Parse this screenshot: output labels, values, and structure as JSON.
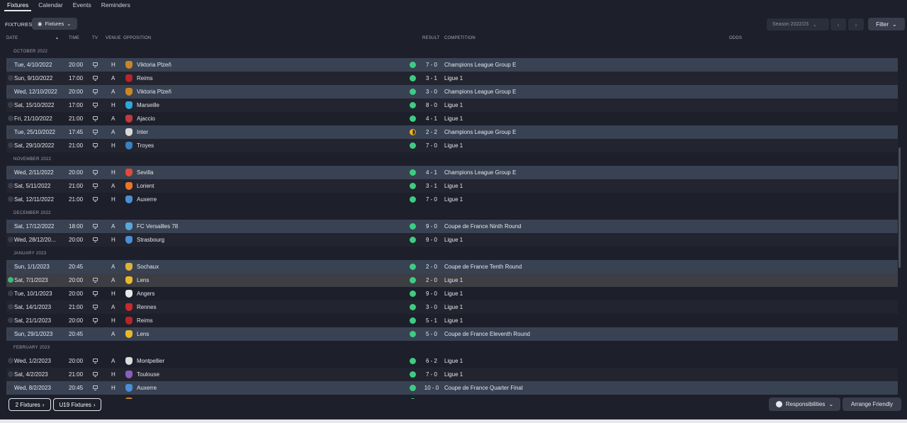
{
  "tabs": [
    {
      "label": "Fixtures",
      "active": true
    },
    {
      "label": "Calendar",
      "active": false
    },
    {
      "label": "Events",
      "active": false
    },
    {
      "label": "Reminders",
      "active": false
    }
  ],
  "toolbar": {
    "fixtures_label": "FIXTURES",
    "view_dropdown": "Fixtures",
    "season": "Season 2022/23",
    "filter": "Filter"
  },
  "columns": {
    "date": "DATE",
    "time": "TIME",
    "tv": "TV",
    "venue": "VENUE",
    "opposition": "OPPOSITION",
    "result": "RESULT",
    "competition": "COMPETITION",
    "odds": "ODDS"
  },
  "months": [
    {
      "label": "OCTOBER 2022",
      "rows": [
        {
          "date": "Tue, 4/10/2022",
          "time": "20:00",
          "tv": true,
          "venue": "H",
          "opposition": "Viktoria Plzeň",
          "crest": "#c8862a",
          "result": "win",
          "score": "7 - 0",
          "competition": "Champions League Group E",
          "style": "hl"
        },
        {
          "date": "Sun, 9/10/2022",
          "time": "17:00",
          "tv": true,
          "venue": "A",
          "opposition": "Reims",
          "crest": "#b8242b",
          "result": "win",
          "score": "3 - 1",
          "competition": "Ligue 1",
          "style": "odd"
        },
        {
          "date": "Wed, 12/10/2022",
          "time": "20:00",
          "tv": true,
          "venue": "A",
          "opposition": "Viktoria Plzeň",
          "crest": "#c8862a",
          "result": "win",
          "score": "3 - 0",
          "competition": "Champions League Group E",
          "style": "hl"
        },
        {
          "date": "Sat, 15/10/2022",
          "time": "17:00",
          "tv": true,
          "venue": "H",
          "opposition": "Marseille",
          "crest": "#2fa7db",
          "result": "win",
          "score": "8 - 0",
          "competition": "Ligue 1",
          "style": "odd"
        },
        {
          "date": "Fri, 21/10/2022",
          "time": "21:00",
          "tv": true,
          "venue": "A",
          "opposition": "Ajaccio",
          "crest": "#c23a3a",
          "result": "win",
          "score": "4 - 1",
          "competition": "Ligue 1",
          "style": ""
        },
        {
          "date": "Tue, 25/10/2022",
          "time": "17:45",
          "tv": true,
          "venue": "A",
          "opposition": "Inter",
          "crest": "#d9d9d9",
          "result": "draw",
          "score": "2 - 2",
          "competition": "Champions League Group E",
          "style": "hl"
        },
        {
          "date": "Sat, 29/10/2022",
          "time": "21:00",
          "tv": true,
          "venue": "H",
          "opposition": "Troyes",
          "crest": "#3a7fc1",
          "result": "win",
          "score": "7 - 0",
          "competition": "Ligue 1",
          "style": "odd"
        }
      ]
    },
    {
      "label": "NOVEMBER 2022",
      "rows": [
        {
          "date": "Wed, 2/11/2022",
          "time": "20:00",
          "tv": true,
          "venue": "H",
          "opposition": "Sevilla",
          "crest": "#e04b3c",
          "result": "win",
          "score": "4 - 1",
          "competition": "Champions League Group E",
          "style": "hl"
        },
        {
          "date": "Sat, 5/11/2022",
          "time": "21:00",
          "tv": true,
          "venue": "A",
          "opposition": "Lorient",
          "crest": "#e8772a",
          "result": "win",
          "score": "3 - 1",
          "competition": "Ligue 1",
          "style": "odd"
        },
        {
          "date": "Sat, 12/11/2022",
          "time": "21:00",
          "tv": true,
          "venue": "H",
          "opposition": "Auxerre",
          "crest": "#4a8fd6",
          "result": "win",
          "score": "7 - 0",
          "competition": "Ligue 1",
          "style": ""
        }
      ]
    },
    {
      "label": "DECEMBER 2022",
      "rows": [
        {
          "date": "Sat, 17/12/2022",
          "time": "18:00",
          "tv": true,
          "venue": "A",
          "opposition": "FC Versailles 78",
          "crest": "#5aa7dc",
          "result": "win",
          "score": "9 - 0",
          "competition": "Coupe de France Ninth Round",
          "style": "hl"
        },
        {
          "date": "Wed, 28/12/20...",
          "time": "20:00",
          "tv": true,
          "venue": "H",
          "opposition": "Strasbourg",
          "crest": "#4b8ed1",
          "result": "win",
          "score": "9 - 0",
          "competition": "Ligue 1",
          "style": "odd"
        }
      ]
    },
    {
      "label": "JANUARY 2023",
      "rows": [
        {
          "date": "Sun, 1/1/2023",
          "time": "20:45",
          "tv": false,
          "venue": "A",
          "opposition": "Sochaux",
          "crest": "#e0b23a",
          "result": "win",
          "score": "2 - 0",
          "competition": "Coupe de France Tenth Round",
          "style": "hl"
        },
        {
          "date": "Sat, 7/1/2023",
          "time": "20:00",
          "tv": true,
          "venue": "A",
          "opposition": "Lens",
          "crest": "#e8b92a",
          "result": "win",
          "score": "2 - 0",
          "competition": "Ligue 1",
          "style": "sel",
          "done": true
        },
        {
          "date": "Tue, 10/1/2023",
          "time": "20:00",
          "tv": true,
          "venue": "H",
          "opposition": "Angers",
          "crest": "#e8e8e8",
          "result": "win",
          "score": "9 - 0",
          "competition": "Ligue 1",
          "style": ""
        },
        {
          "date": "Sat, 14/1/2023",
          "time": "21:00",
          "tv": true,
          "venue": "A",
          "opposition": "Rennes",
          "crest": "#c72c2c",
          "result": "win",
          "score": "3 - 0",
          "competition": "Ligue 1",
          "style": "odd"
        },
        {
          "date": "Sat, 21/1/2023",
          "time": "20:00",
          "tv": true,
          "venue": "H",
          "opposition": "Reims",
          "crest": "#b8242b",
          "result": "win",
          "score": "5 - 1",
          "competition": "Ligue 1",
          "style": ""
        },
        {
          "date": "Sun, 29/1/2023",
          "time": "20:45",
          "tv": false,
          "venue": "A",
          "opposition": "Lens",
          "crest": "#e8b92a",
          "result": "win",
          "score": "5 - 0",
          "competition": "Coupe de France Eleventh Round",
          "style": "hl"
        }
      ]
    },
    {
      "label": "FEBRUARY 2023",
      "rows": [
        {
          "date": "Wed, 1/2/2023",
          "time": "20:00",
          "tv": true,
          "venue": "A",
          "opposition": "Montpellier",
          "crest": "#dcdcdc",
          "result": "win",
          "score": "6 - 2",
          "competition": "Ligue 1",
          "style": ""
        },
        {
          "date": "Sat, 4/2/2023",
          "time": "21:00",
          "tv": true,
          "venue": "H",
          "opposition": "Toulouse",
          "crest": "#8a5fb8",
          "result": "win",
          "score": "7 - 0",
          "competition": "Ligue 1",
          "style": "odd"
        },
        {
          "date": "Wed, 8/2/2023",
          "time": "20:45",
          "tv": true,
          "venue": "H",
          "opposition": "Auxerre",
          "crest": "#4a8fd6",
          "result": "win",
          "score": "10 - 0",
          "competition": "Coupe de France Quarter Final",
          "style": "hl"
        },
        {
          "date": "",
          "time": "",
          "tv": false,
          "venue": "",
          "opposition": "",
          "crest": "#c8862a",
          "result": "win",
          "score": "",
          "competition": "",
          "style": ""
        }
      ]
    }
  ],
  "bottom": {
    "fixtures_btn": "2 Fixtures",
    "u19_btn": "U19 Fixtures",
    "responsibilities": "Responsibilities",
    "arrange": "Arrange Friendly"
  }
}
